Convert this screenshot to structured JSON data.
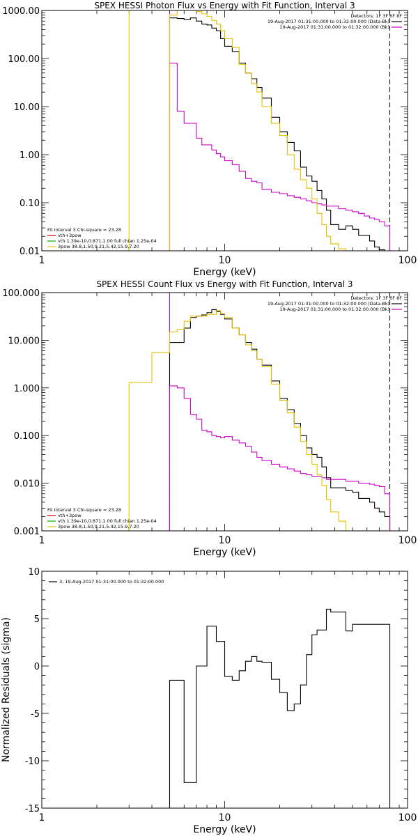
{
  "chart_data": [
    {
      "type": "line",
      "title": "SPEX HESSI Photon Flux vs Energy with Fit Function, Interval 3",
      "xlabel": "Energy (keV)",
      "ylabel": "",
      "xscale": "log",
      "yscale": "log",
      "xlim": [
        1,
        100
      ],
      "ylim": [
        0.01,
        1000
      ],
      "xticks": [
        {
          "v": 1,
          "label": "1"
        },
        {
          "v": 10,
          "label": "10"
        },
        {
          "v": 100,
          "label": "100"
        }
      ],
      "yticks": [
        {
          "v": 1000,
          "label": "1000.00"
        },
        {
          "v": 100,
          "label": "100.00"
        },
        {
          "v": 10,
          "label": "10.00"
        },
        {
          "v": 1,
          "label": "1.00"
        },
        {
          "v": 0.1,
          "label": "0.10"
        },
        {
          "v": 0.01,
          "label": "0.01"
        }
      ],
      "vlines": [
        {
          "x": 3.0,
          "color": "#e6c000",
          "style": "solid"
        },
        {
          "x": 5.0,
          "color": "#cc00cc",
          "style": "dotted"
        },
        {
          "x": 80,
          "color": "#000000",
          "style": "dashed"
        }
      ],
      "legend_topright": {
        "header": "Detectors: 1F 3F 6F 8F",
        "entries": [
          {
            "text": "19-Aug-2017 01:31:00.000 to 01:32:00.000 (Data-Bk)",
            "color": "#000000"
          },
          {
            "text": "19-Aug-2017 01:31:00.000 to 01:32:00.000 (Bk)",
            "color": "#cc00cc"
          }
        ]
      },
      "legend_bottomleft": {
        "header": "Fit Interval 3   Chi-square = 23.28",
        "entries": [
          {
            "text": "vth+3pow",
            "color": "#cc0000"
          },
          {
            "text": "vth 1.39e-10,0.871,1.00  full chian 1.25e-04",
            "color": "#00aa00"
          },
          {
            "text": "3pow 38.8,1.50,9.21,5.42,15.9,7.20",
            "color": "#e6c000"
          }
        ]
      },
      "series": [
        {
          "color": "#000000",
          "edges": [
            5,
            5.5,
            6,
            6.5,
            7,
            7.5,
            8,
            8.5,
            9,
            9.5,
            10,
            11,
            12,
            13,
            14,
            15,
            16,
            18,
            20,
            22,
            24,
            26,
            28,
            30,
            32,
            34,
            36,
            38,
            42,
            46,
            50,
            54,
            58,
            62,
            66,
            70,
            75,
            80
          ],
          "values": [
            700,
            680,
            650,
            700,
            600,
            520,
            500,
            430,
            380,
            260,
            180,
            140,
            80,
            50,
            38,
            25,
            15,
            6,
            3.0,
            1.8,
            1.2,
            0.55,
            0.36,
            0.28,
            0.18,
            0.12,
            0.07,
            0.035,
            0.028,
            0.033,
            0.028,
            0.021,
            0.021,
            0.016,
            0.012,
            0.0105,
            0.01
          ]
        },
        {
          "color": "#cc00cc",
          "edges": [
            5,
            5.5,
            6,
            6.5,
            7,
            7.5,
            8,
            8.5,
            9,
            9.5,
            10,
            11,
            12,
            13,
            14,
            15,
            16,
            18,
            20,
            22,
            24,
            26,
            28,
            30,
            32,
            34,
            36,
            38,
            42,
            46,
            50,
            54,
            58,
            62,
            66,
            70,
            75,
            80
          ],
          "values": [
            80,
            8,
            4.5,
            4.5,
            2.2,
            1.6,
            1.6,
            1.25,
            1.05,
            0.9,
            0.75,
            0.62,
            0.45,
            0.32,
            0.28,
            0.26,
            0.19,
            0.165,
            0.155,
            0.14,
            0.13,
            0.12,
            0.11,
            0.1,
            0.095,
            0.09,
            0.085,
            0.085,
            0.075,
            0.07,
            0.065,
            0.06,
            0.053,
            0.048,
            0.045,
            0.04,
            0.033
          ]
        },
        {
          "color": "#e6c000",
          "edges": [
            3,
            5,
            5.5,
            6,
            6.5,
            7,
            7.5,
            8,
            8.5,
            9,
            9.5,
            10,
            11,
            12,
            13,
            14,
            15,
            16,
            18,
            20,
            22,
            24,
            26,
            28,
            30,
            32,
            34,
            36,
            38,
            42,
            46,
            50
          ],
          "values": [
            0.005,
            800,
            1000,
            1200,
            1150,
            950,
            850,
            750,
            620,
            520,
            380,
            260,
            170,
            75,
            50,
            30,
            20,
            10,
            4.5,
            2.5,
            1.0,
            0.5,
            0.3,
            0.2,
            0.12,
            0.06,
            0.035,
            0.02,
            0.014,
            0.011,
            0.01
          ]
        }
      ]
    },
    {
      "type": "line",
      "title": "SPEX HESSI Count Flux vs Energy with Fit Function, Interval 3",
      "xlabel": "Energy (keV)",
      "ylabel": "",
      "xscale": "log",
      "yscale": "log",
      "xlim": [
        1,
        100
      ],
      "ylim": [
        0.001,
        100
      ],
      "xticks": [
        {
          "v": 1,
          "label": "1"
        },
        {
          "v": 10,
          "label": "10"
        },
        {
          "v": 100,
          "label": "100"
        }
      ],
      "yticks": [
        {
          "v": 100,
          "label": "100.000"
        },
        {
          "v": 10,
          "label": "10.000"
        },
        {
          "v": 1,
          "label": "1.000"
        },
        {
          "v": 0.1,
          "label": "0.100"
        },
        {
          "v": 0.01,
          "label": "0.010"
        },
        {
          "v": 0.001,
          "label": "0.001"
        }
      ],
      "vlines": [
        {
          "x": 5.0,
          "color": "#000000",
          "style": "dotted"
        },
        {
          "x": 5.0,
          "color": "#cc00cc",
          "style": "solid"
        },
        {
          "x": 80,
          "color": "#000000",
          "style": "dashed"
        }
      ],
      "legend_topright": {
        "header": "Detectors: 1F 3F 6F 8F",
        "entries": [
          {
            "text": "19-Aug-2017 01:31:00.000 to 01:32:00.000 (Data-Bk)",
            "color": "#000000"
          },
          {
            "text": "19-Aug-2017 01:31:00.000 to 01:32:00.000 (Bk)",
            "color": "#cc00cc"
          }
        ]
      },
      "legend_bottomleft": {
        "header": "Fit Interval 3   Chi-square = 23.28",
        "entries": [
          {
            "text": "vth+3pow",
            "color": "#cc0000"
          },
          {
            "text": "vth 1.39e-10,0.871,1.00  full chian 1.25e-04",
            "color": "#00aa00"
          },
          {
            "text": "3pow 38.8,1.50,9.21,5.42,15.9,7.20",
            "color": "#e6c000"
          }
        ]
      },
      "series": [
        {
          "color": "#000000",
          "edges": [
            5,
            5.5,
            6,
            6.5,
            7,
            7.5,
            8,
            8.5,
            9,
            9.5,
            10,
            11,
            12,
            13,
            14,
            15,
            16,
            18,
            20,
            22,
            24,
            26,
            28,
            30,
            32,
            34,
            36,
            38,
            42,
            46,
            50,
            54,
            58,
            62,
            66,
            70,
            75,
            80
          ],
          "values": [
            9,
            9,
            18,
            30,
            32,
            34,
            38,
            44,
            40,
            35,
            28,
            18,
            13,
            9,
            6.5,
            4,
            3,
            1.4,
            0.6,
            0.35,
            0.18,
            0.1,
            0.055,
            0.04,
            0.035,
            0.022,
            0.013,
            0.008,
            0.008,
            0.007,
            0.0065,
            0.0048,
            0.0048,
            0.004,
            0.003,
            0.0025,
            0.002
          ]
        },
        {
          "color": "#cc00cc",
          "edges": [
            5,
            5.5,
            6,
            6.5,
            7,
            7.5,
            8,
            8.5,
            9,
            9.5,
            10,
            11,
            12,
            13,
            14,
            15,
            16,
            18,
            20,
            22,
            24,
            26,
            28,
            30,
            32,
            34,
            36,
            38,
            42,
            46,
            50,
            54,
            58,
            62,
            66,
            70,
            75,
            80
          ],
          "values": [
            1.1,
            1.0,
            0.6,
            0.28,
            0.22,
            0.13,
            0.12,
            0.1,
            0.095,
            0.09,
            0.095,
            0.08,
            0.07,
            0.06,
            0.045,
            0.035,
            0.03,
            0.025,
            0.022,
            0.02,
            0.018,
            0.016,
            0.015,
            0.014,
            0.014,
            0.013,
            0.012,
            0.012,
            0.012,
            0.011,
            0.011,
            0.01,
            0.01,
            0.0095,
            0.009,
            0.0085,
            0.006
          ]
        },
        {
          "color": "#e6c000",
          "edges": [
            3,
            4,
            5,
            5.5,
            6,
            6.5,
            7,
            7.5,
            8,
            8.5,
            9,
            9.5,
            10,
            11,
            12,
            13,
            14,
            15,
            16,
            18,
            20,
            22,
            24,
            26,
            28,
            30,
            32,
            34,
            36,
            38,
            42,
            46,
            50
          ],
          "values": [
            1.3,
            5.5,
            15,
            17,
            25,
            32,
            32,
            32,
            35,
            35,
            42,
            36,
            30,
            18,
            13,
            8,
            6,
            4,
            2.8,
            1.2,
            0.55,
            0.3,
            0.15,
            0.075,
            0.04,
            0.025,
            0.015,
            0.009,
            0.0045,
            0.0025,
            0.0016,
            0.001
          ]
        }
      ]
    },
    {
      "type": "line",
      "title": "",
      "xlabel": "Energy (keV)",
      "ylabel": "Normalized Residuals (sigma)",
      "xscale": "log",
      "yscale": "linear",
      "xlim": [
        1,
        100
      ],
      "ylim": [
        -15,
        10
      ],
      "xticks": [
        {
          "v": 1,
          "label": "1"
        },
        {
          "v": 10,
          "label": "10"
        },
        {
          "v": 100,
          "label": "100"
        }
      ],
      "yticks": [
        {
          "v": 10,
          "label": "10"
        },
        {
          "v": 5,
          "label": "5"
        },
        {
          "v": 0,
          "label": "0"
        },
        {
          "v": -5,
          "label": "-5"
        },
        {
          "v": -10,
          "label": "-10"
        },
        {
          "v": -15,
          "label": "-15"
        }
      ],
      "legend_topleft": {
        "entries": [
          {
            "text": "3, 19-Aug-2017 01:31:00.000 to 01:32:00.000",
            "color": "#000000"
          }
        ]
      },
      "series": [
        {
          "color": "#000000",
          "edges": [
            5,
            5.5,
            6,
            6.5,
            7,
            7.5,
            8,
            8.5,
            9,
            9.5,
            10,
            11,
            12,
            13,
            14,
            15,
            16,
            18,
            20,
            22,
            24,
            26,
            28,
            30,
            32,
            34,
            36,
            38,
            42,
            46,
            50,
            54,
            58,
            62,
            66,
            70,
            75,
            80
          ],
          "values": [
            -1.5,
            -1.5,
            -12.3,
            -12.3,
            0,
            0,
            4.2,
            4.2,
            2.6,
            2.6,
            -1.1,
            -1.5,
            -0.5,
            0.5,
            1.0,
            0.5,
            0.4,
            -1.4,
            -2.8,
            -4.7,
            -4.0,
            -2.0,
            1.2,
            3.3,
            3.8,
            3.8,
            6.0,
            5.7,
            5.7,
            3.7,
            4.4,
            4.4,
            4.4,
            4.4,
            4.4,
            4.4,
            4.4
          ]
        }
      ]
    }
  ]
}
